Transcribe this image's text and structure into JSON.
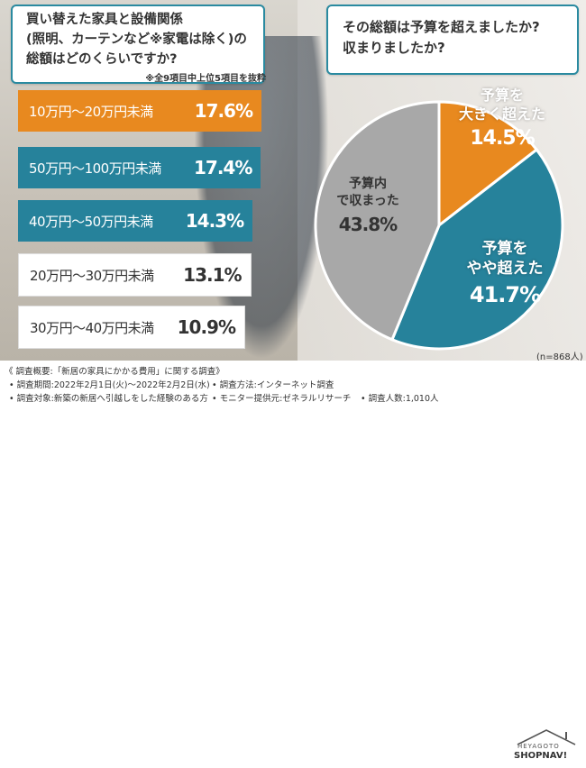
{
  "question_left": "買い替えた家具と設備関係\n(照明、カーテンなど※家電は除く)の\n総額はどのくらいですか?",
  "note_left": "※全9項目中上位5項目を抜粋",
  "question_right": "その総額は予算を超えましたか?\n収まりましたか?",
  "sample_size": "(n=868人)",
  "footer": {
    "title": "《 調査概要:「新居の家具にかかる費用」に関する調査》",
    "period": "• 調査期間:2022年2月1日(火)〜2022年2月2日(水)",
    "method": "• 調査方法:インターネット調査",
    "target": "• 調査対象:新築の新居へ引越しをした経験のある方",
    "provider": "• モニター提供元:ゼネラルリサーチ",
    "count": "• 調査人数:1,010人"
  },
  "logo": {
    "top": "HEYAGOTO",
    "bottom": "SHOPNAV!"
  },
  "colors": {
    "orange": "#e8891f",
    "teal": "#26829b",
    "gray": "#a8a8a8",
    "accent_border": "#2a8aa0"
  },
  "chart_data": [
    {
      "type": "bar",
      "categories": [
        "10万円〜20万円未満",
        "50万円〜100万円未満",
        "40万円〜50万円未満",
        "20万円〜30万円未満",
        "30万円〜40万円未満"
      ],
      "values": [
        17.6,
        17.4,
        14.3,
        13.1,
        10.9
      ],
      "value_labels": [
        "17.6%",
        "17.4%",
        "14.3%",
        "13.1%",
        "10.9%"
      ],
      "bar_colors": [
        "#e8891f",
        "#26829b",
        "#26829b",
        "#ffffff",
        "#ffffff"
      ]
    },
    {
      "type": "pie",
      "categories": [
        "予算を大きく超えた",
        "予算をやや超えた",
        "予算内で収まった"
      ],
      "values": [
        14.5,
        41.7,
        43.8
      ],
      "value_labels": [
        "14.5%",
        "41.7%",
        "43.8%"
      ],
      "colors": [
        "#e8891f",
        "#26829b",
        "#a8a8a8"
      ]
    }
  ]
}
